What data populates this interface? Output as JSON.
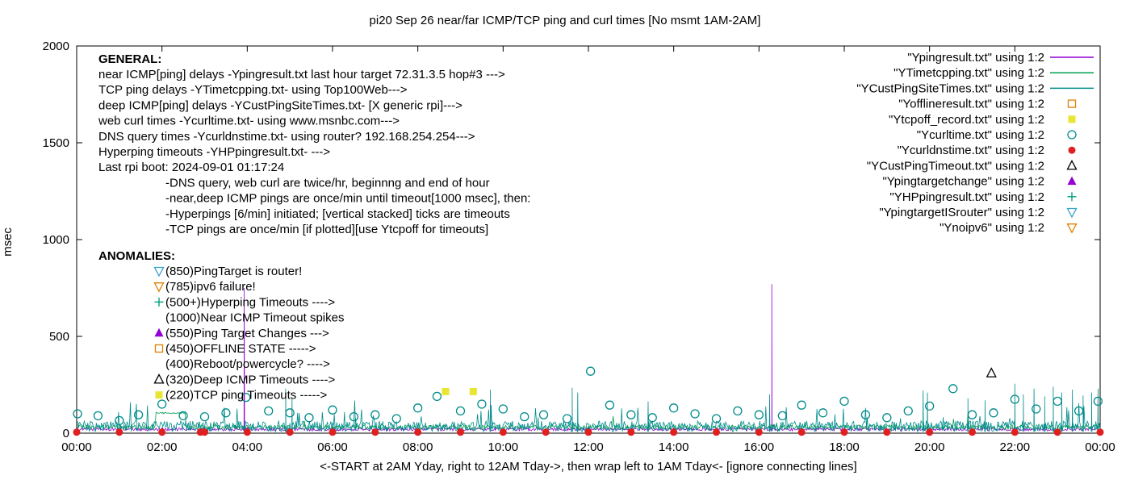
{
  "title": "pi20 Sep 26  near/far ICMP/TCP ping and curl times [No msmt 1AM-2AM]",
  "axes": {
    "ylabel": "msec",
    "xlabel": "<-START at 2AM Yday, right to 12AM Tday->, then wrap left to 1AM Tday<- [ignore connecting lines]",
    "yticks": [
      0,
      500,
      1000,
      1500,
      2000
    ],
    "xticks": [
      "00:00",
      "02:00",
      "04:00",
      "06:00",
      "08:00",
      "10:00",
      "12:00",
      "14:00",
      "16:00",
      "18:00",
      "20:00",
      "22:00",
      "00:00"
    ]
  },
  "general": {
    "heading": "GENERAL:",
    "lines": [
      "near ICMP[ping] delays -Ypingresult.txt last hour target 72.31.3.5 hop#3 --->",
      "TCP ping delays -YTimetcpping.txt- using Top100Web--->",
      "deep ICMP[ping] delays -YCustPingSiteTimes.txt- [X generic rpi]--->",
      "web curl times -Ycurltime.txt- using www.msnbc.com--->",
      "DNS query times -Ycurldnstime.txt- using router? 192.168.254.254--->",
      "Hyperping timeouts -YHPpingresult.txt- --->",
      "Last rpi boot: 2024-09-01 01:17:24"
    ],
    "notes": [
      "-DNS query, web curl are twice/hr, beginnng and end of hour",
      "-near,deep ICMP pings are once/min until timeout[1000 msec], then:",
      " -Hyperpings [6/min] initiated; [vertical stacked] ticks are timeouts",
      "-TCP pings are once/min [if plotted][use Ytcpoff for timeouts]"
    ]
  },
  "anomalies": {
    "heading": "ANOMALIES:",
    "items": [
      {
        "marker": "triangle-down-open",
        "color": "#38a0cc",
        "text": "(850)PingTarget is router!"
      },
      {
        "marker": "triangle-down-open",
        "color": "#e08000",
        "text": "(785)ipv6 failure!"
      },
      {
        "marker": "plus",
        "color": "#009e80",
        "text": "(500+)Hyperping Timeouts ---->"
      },
      {
        "marker": "none",
        "color": "#000000",
        "text": "(1000)Near ICMP Timeout spikes"
      },
      {
        "marker": "triangle-up-filled",
        "color": "#9400d3",
        "text": "(550)Ping Target Changes --->"
      },
      {
        "marker": "square-open",
        "color": "#e08000",
        "text": "(450)OFFLINE STATE ----->"
      },
      {
        "marker": "none",
        "color": "#000000",
        "text": "(400)Reboot/powercycle? ---->"
      },
      {
        "marker": "triangle-up-open",
        "color": "#000000",
        "text": "(320)Deep ICMP Timeouts ---->"
      },
      {
        "marker": "square-filled",
        "color": "#e8e632",
        "text": "(220)TCP ping Timeouts ----->"
      }
    ]
  },
  "legend": [
    {
      "label": "\"Ypingresult.txt\" using 1:2",
      "sample": "line",
      "color": "#9400d3"
    },
    {
      "label": "\"YTimetcpping.txt\" using 1:2",
      "sample": "line",
      "color": "#00a050"
    },
    {
      "label": "\"YCustPingSiteTimes.txt\" using 1:2",
      "sample": "line",
      "color": "#008b8b"
    },
    {
      "label": "\"Yofflineresult.txt\" using 1:2",
      "sample": "square-open",
      "color": "#e08000"
    },
    {
      "label": "\"Ytcpoff_record.txt\" using 1:2",
      "sample": "square-filled",
      "color": "#e8e632"
    },
    {
      "label": "\"Ycurltime.txt\" using 1:2",
      "sample": "circle-open",
      "color": "#008b8b"
    },
    {
      "label": "\"Ycurldnstime.txt\" using 1:2",
      "sample": "circle-filled",
      "color": "#e02020"
    },
    {
      "label": "\"YCustPingTimeout.txt\" using 1:2",
      "sample": "triangle-up-open",
      "color": "#000000"
    },
    {
      "label": "\"Ypingtargetchange\" using 1:2",
      "sample": "triangle-up-filled",
      "color": "#9400d3"
    },
    {
      "label": "\"YHPpingresult.txt\" using 1:2",
      "sample": "plus",
      "color": "#009e80"
    },
    {
      "label": "\"YpingtargetISrouter\" using 1:2",
      "sample": "triangle-down-open",
      "color": "#38a0cc"
    },
    {
      "label": "\"Ynoipv6\" using 1:2",
      "sample": "triangle-down-open",
      "color": "#e08000"
    }
  ],
  "chart_data": {
    "type": "line",
    "title": "pi20 Sep 26  near/far ICMP/TCP ping and curl times [No msmt 1AM-2AM]",
    "xlabel": "<-START at 2AM Yday, right to 12AM Tday->, then wrap left to 1AM Tday<- [ignore connecting lines]",
    "ylabel": "msec",
    "ylim": [
      0,
      2000
    ],
    "xlim_hours": [
      0,
      24
    ],
    "grid": false,
    "legend_position": "top-right",
    "noise_series": [
      {
        "name": "Ypingresult.txt",
        "color": "#9400d3",
        "base": 12,
        "variance": 16,
        "spike_chance": 0.004,
        "spike_max": 60,
        "plateaus": [],
        "spikes": [
          [
            3.93,
            750
          ],
          [
            16.3,
            770
          ]
        ]
      },
      {
        "name": "YTimetcpping.txt",
        "color": "#00a050",
        "base": 18,
        "variance": 25,
        "spike_chance": 0.006,
        "spike_max": 70,
        "plateaus": [
          [
            1.85,
            2.55,
            100
          ]
        ],
        "spikes": []
      },
      {
        "name": "YCustPingSiteTimes.txt",
        "color": "#008b8b",
        "base": 8,
        "variance": 55,
        "spike_chance": 0.05,
        "spike_max": 120,
        "plateaus": [],
        "spikes": [
          [
            4.9,
            230
          ],
          [
            5.05,
            180
          ],
          [
            9.7,
            225
          ],
          [
            11.62,
            235
          ],
          [
            11.75,
            210
          ],
          [
            13.4,
            150
          ],
          [
            16.25,
            200
          ],
          [
            19.85,
            220
          ],
          [
            19.95,
            210
          ],
          [
            20.9,
            180
          ],
          [
            21.3,
            170
          ],
          [
            22.0,
            255
          ],
          [
            22.2,
            200
          ],
          [
            22.45,
            230
          ],
          [
            22.7,
            190
          ],
          [
            22.9,
            240
          ],
          [
            23.1,
            210
          ],
          [
            23.35,
            225
          ],
          [
            23.6,
            195
          ],
          [
            23.8,
            210
          ],
          [
            23.95,
            230
          ]
        ]
      }
    ],
    "scatter_series": [
      {
        "name": "Ycurltime.txt",
        "marker": "circle-open",
        "color": "#008b8b",
        "data": [
          [
            0.02,
            100
          ],
          [
            0.5,
            90
          ],
          [
            1.0,
            65
          ],
          [
            1.45,
            95
          ],
          [
            2.0,
            150
          ],
          [
            2.5,
            90
          ],
          [
            3.0,
            85
          ],
          [
            3.5,
            105
          ],
          [
            3.97,
            185
          ],
          [
            4.5,
            115
          ],
          [
            5.0,
            105
          ],
          [
            5.45,
            80
          ],
          [
            6.0,
            120
          ],
          [
            6.5,
            85
          ],
          [
            7.0,
            95
          ],
          [
            7.5,
            75
          ],
          [
            8.0,
            130
          ],
          [
            8.45,
            190
          ],
          [
            9.0,
            115
          ],
          [
            9.5,
            150
          ],
          [
            10.0,
            125
          ],
          [
            10.5,
            85
          ],
          [
            10.95,
            95
          ],
          [
            11.5,
            75
          ],
          [
            12.05,
            320
          ],
          [
            12.5,
            145
          ],
          [
            13.0,
            95
          ],
          [
            13.5,
            80
          ],
          [
            14.0,
            130
          ],
          [
            14.5,
            100
          ],
          [
            15.0,
            75
          ],
          [
            15.5,
            115
          ],
          [
            16.0,
            95
          ],
          [
            16.55,
            90
          ],
          [
            17.0,
            145
          ],
          [
            17.5,
            105
          ],
          [
            18.0,
            165
          ],
          [
            18.5,
            95
          ],
          [
            19.0,
            80
          ],
          [
            19.5,
            115
          ],
          [
            20.0,
            140
          ],
          [
            20.55,
            230
          ],
          [
            21.0,
            95
          ],
          [
            21.5,
            105
          ],
          [
            22.0,
            175
          ],
          [
            22.5,
            125
          ],
          [
            23.0,
            165
          ],
          [
            23.5,
            115
          ],
          [
            23.95,
            165
          ]
        ]
      },
      {
        "name": "Ycurldnstime.txt",
        "marker": "circle-filled",
        "color": "#e02020",
        "data": [
          [
            0,
            5
          ],
          [
            1,
            5
          ],
          [
            2,
            5
          ],
          [
            2.9,
            5
          ],
          [
            3,
            5
          ],
          [
            4,
            5
          ],
          [
            5,
            5
          ],
          [
            6,
            5
          ],
          [
            7,
            5
          ],
          [
            8,
            5
          ],
          [
            9,
            5
          ],
          [
            10,
            5
          ],
          [
            11,
            5
          ],
          [
            12,
            5
          ],
          [
            13,
            5
          ],
          [
            14,
            5
          ],
          [
            15,
            5
          ],
          [
            16,
            5
          ],
          [
            17,
            5
          ],
          [
            18,
            5
          ],
          [
            19,
            5
          ],
          [
            20,
            5
          ],
          [
            21,
            5
          ],
          [
            22,
            5
          ],
          [
            23,
            5
          ],
          [
            24,
            5
          ]
        ]
      },
      {
        "name": "Ytcpoff_record.txt",
        "marker": "square-filled",
        "color": "#e8e632",
        "data": [
          [
            8.65,
            215
          ],
          [
            9.3,
            215
          ]
        ]
      },
      {
        "name": "YCustPingTimeout.txt",
        "marker": "triangle-up-open",
        "color": "#000000",
        "data": [
          [
            21.45,
            310
          ]
        ]
      }
    ]
  }
}
